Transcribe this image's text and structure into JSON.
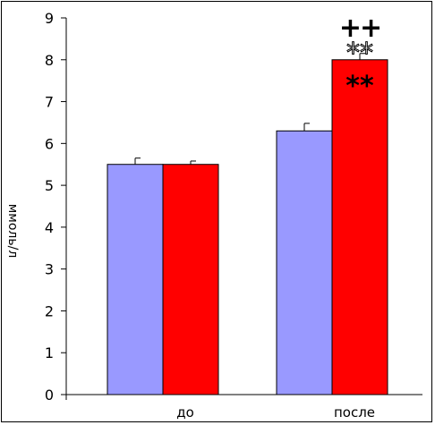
{
  "chart_data": {
    "type": "bar",
    "categories": [
      "до",
      "после"
    ],
    "series": [
      {
        "values": [
          5.5,
          6.3
        ],
        "errors": [
          0.15,
          0.18
        ],
        "color": "#9999ff"
      },
      {
        "values": [
          5.5,
          8.0
        ],
        "errors": [
          0.08,
          0.15
        ],
        "color": "#ff0000"
      }
    ],
    "ylabel": "ммоль/л",
    "xlabel": "",
    "ylim": [
      0,
      9
    ],
    "yticks": [
      0,
      1,
      2,
      3,
      4,
      5,
      6,
      7,
      8,
      9
    ],
    "grid": false,
    "legend": "none",
    "annotations": [
      {
        "text": "++",
        "category": "после",
        "series": 1,
        "style": "bold"
      },
      {
        "text": "**",
        "category": "после",
        "series": 1,
        "style": "outline"
      },
      {
        "text": "**",
        "category": "после",
        "series": 1,
        "style": "inside-bar"
      }
    ]
  }
}
